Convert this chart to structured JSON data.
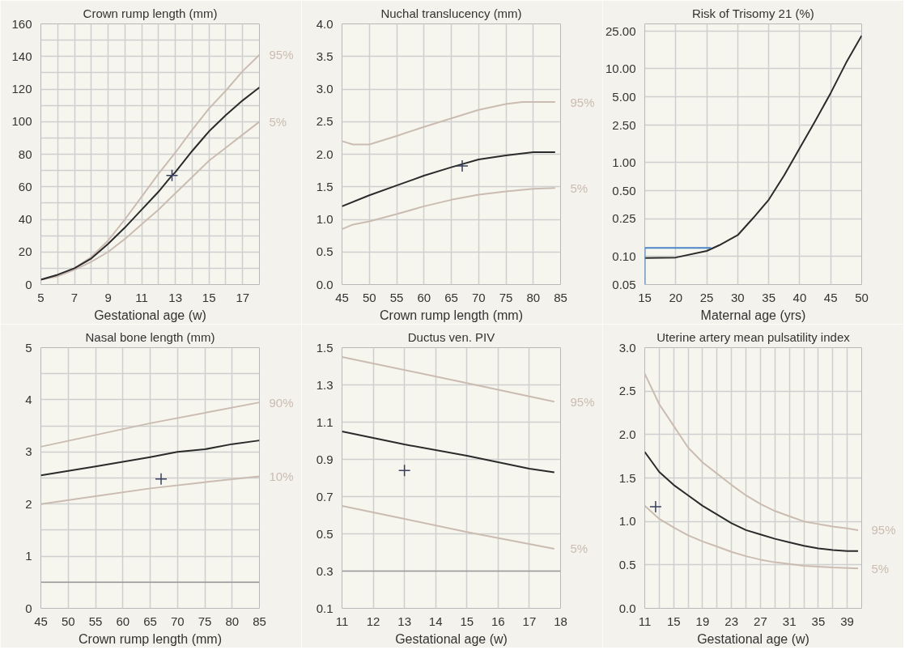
{
  "chart_data": [
    {
      "type": "line",
      "title": "Crown rump length (mm)",
      "xlabel": "Gestational age (w)",
      "xlim": [
        5,
        18
      ],
      "ylim": [
        0,
        160
      ],
      "xticks": [
        5,
        {
          "value": 6,
          "label": null
        },
        7,
        {
          "value": 8,
          "label": null
        },
        9,
        {
          "value": 10,
          "label": null
        },
        11,
        {
          "value": 12,
          "label": null
        },
        13,
        {
          "value": 14,
          "label": null
        },
        15,
        {
          "value": 16,
          "label": null
        },
        17
      ],
      "yticks": [
        0,
        {
          "value": 10,
          "label": null
        },
        20,
        {
          "value": 30,
          "label": null
        },
        40,
        {
          "value": 50,
          "label": null
        },
        60,
        {
          "value": 70,
          "label": null
        },
        80,
        {
          "value": 90,
          "label": null
        },
        100,
        {
          "value": 110,
          "label": null
        },
        120,
        {
          "value": 130,
          "label": null
        },
        140,
        {
          "value": 150,
          "label": null
        },
        160
      ],
      "grid": true,
      "legend": false,
      "series": [
        {
          "name": "95%",
          "color": "#cbbcb2",
          "x": [
            5,
            6,
            7,
            8,
            9,
            10,
            11,
            12,
            13,
            14,
            15,
            16,
            17,
            18
          ],
          "values": [
            3,
            6,
            10,
            17,
            27,
            40,
            54,
            68,
            81,
            95,
            108,
            119,
            131,
            141
          ]
        },
        {
          "name": "5%",
          "color": "#cbbcb2",
          "x": [
            5,
            6,
            7,
            8,
            9,
            10,
            11,
            12,
            13,
            14,
            15,
            16,
            17,
            18
          ],
          "values": [
            3,
            5,
            9,
            14,
            20,
            28,
            37,
            46,
            56,
            66,
            76,
            84,
            92,
            100
          ]
        },
        {
          "color": "#2b2b2b",
          "x": [
            5,
            6,
            7,
            8,
            9,
            10,
            11,
            12,
            12.8,
            13,
            14,
            15,
            16,
            17,
            18
          ],
          "values": [
            3,
            6,
            10,
            16,
            25,
            35,
            46,
            57,
            67,
            69,
            82,
            94,
            104,
            113,
            121
          ]
        },
        {
          "type": "scatter",
          "marker": "cross",
          "color": "#3a3f5c",
          "x": [
            12.8
          ],
          "values": [
            67
          ]
        }
      ]
    },
    {
      "type": "line",
      "title": "Nuchal translucency (mm)",
      "xlabel": "Crown rump length (mm)",
      "xlim": [
        45,
        85
      ],
      "ylim": [
        0,
        4
      ],
      "xticks": [
        45,
        50,
        55,
        60,
        65,
        70,
        75,
        80,
        85
      ],
      "yticks": [
        {
          "value": 0,
          "label": "0.0"
        },
        0.5,
        {
          "value": 1,
          "label": "1.0"
        },
        1.5,
        {
          "value": 2,
          "label": "2.0"
        },
        2.5,
        {
          "value": 3,
          "label": "3.0"
        },
        3.5,
        {
          "value": 4,
          "label": "4.0"
        }
      ],
      "grid": true,
      "legend": false,
      "series": [
        {
          "name": "95%",
          "color": "#cbbcb2",
          "x": [
            45,
            47,
            50,
            55,
            60,
            65,
            70,
            75,
            78,
            84
          ],
          "values": [
            2.2,
            2.15,
            2.15,
            2.28,
            2.42,
            2.55,
            2.68,
            2.77,
            2.8,
            2.8
          ]
        },
        {
          "name": "5%",
          "color": "#cbbcb2",
          "x": [
            45,
            47,
            50,
            55,
            60,
            65,
            70,
            75,
            80,
            84
          ],
          "values": [
            0.85,
            0.92,
            0.97,
            1.08,
            1.2,
            1.3,
            1.38,
            1.43,
            1.47,
            1.48
          ]
        },
        {
          "color": "#2b2b2b",
          "x": [
            45,
            50,
            55,
            60,
            65,
            70,
            75,
            80,
            84
          ],
          "values": [
            1.2,
            1.37,
            1.52,
            1.67,
            1.8,
            1.92,
            1.98,
            2.03,
            2.03
          ]
        },
        {
          "type": "scatter",
          "marker": "cross",
          "color": "#3a3f5c",
          "x": [
            67
          ],
          "values": [
            1.82
          ]
        }
      ]
    },
    {
      "type": "line",
      "title": "Risk of Trisomy 21 (%)",
      "xlabel": "Maternal age (yrs)",
      "xlim": [
        15,
        50
      ],
      "ylim": [
        0.05,
        30
      ],
      "log": "y",
      "xticks": [
        15,
        20,
        25,
        30,
        35,
        40,
        45,
        50
      ],
      "yticks": [
        {
          "value": 0.05,
          "label": "0.05"
        },
        {
          "value": 0.1,
          "label": "0.10"
        },
        {
          "value": 0.25,
          "label": "0.25"
        },
        {
          "value": 0.5,
          "label": "0.50"
        },
        {
          "value": 1,
          "label": "1.00"
        },
        {
          "value": 2.5,
          "label": "2.50"
        },
        {
          "value": 5,
          "label": "5.00"
        },
        {
          "value": 10,
          "label": "10.00"
        },
        {
          "value": 25,
          "label": "25.00"
        }
      ],
      "grid": true,
      "legend": false,
      "series": [
        {
          "color": "#2b2b2b",
          "x": [
            15,
            20,
            25,
            27,
            30,
            32.5,
            35,
            37.5,
            40,
            42.5,
            45,
            47.5,
            50
          ],
          "values": [
            0.096,
            0.097,
            0.114,
            0.131,
            0.168,
            0.256,
            0.4,
            0.73,
            1.42,
            2.76,
            5.5,
            11.6,
            22.5
          ]
        },
        {
          "color": "#4a86c8",
          "x": [
            25.7,
            15,
            15
          ],
          "values": [
            0.123,
            0.123,
            0.05
          ]
        }
      ]
    },
    {
      "type": "line",
      "title": "Nasal bone length (mm)",
      "xlabel": "Crown rump length (mm)",
      "xlim": [
        45,
        85
      ],
      "ylim": [
        0,
        5
      ],
      "xticks": [
        45,
        50,
        55,
        60,
        65,
        70,
        75,
        80,
        85
      ],
      "yticks": [
        0,
        {
          "value": 0.5,
          "label": null
        },
        1,
        {
          "value": 1.5,
          "label": null
        },
        2,
        {
          "value": 2.5,
          "label": null
        },
        3,
        {
          "value": 3.5,
          "label": null
        },
        4,
        {
          "value": 4.5,
          "label": null
        },
        5
      ],
      "grid": true,
      "legend": false,
      "ref_lines": [
        {
          "axis": "y",
          "value": 0.5,
          "color": "#9a9a9a"
        }
      ],
      "series": [
        {
          "name": "90%",
          "color": "#cbbcb2",
          "x": [
            45,
            65,
            85
          ],
          "values": [
            3.1,
            3.55,
            3.95
          ]
        },
        {
          "name": "10%",
          "color": "#cbbcb2",
          "x": [
            45,
            55,
            65,
            75,
            85
          ],
          "values": [
            2.0,
            2.15,
            2.3,
            2.42,
            2.53
          ]
        },
        {
          "color": "#2b2b2b",
          "x": [
            45,
            55,
            65,
            70,
            75,
            80,
            85
          ],
          "values": [
            2.55,
            2.72,
            2.9,
            3.0,
            3.05,
            3.15,
            3.22
          ]
        },
        {
          "type": "scatter",
          "marker": "cross",
          "color": "#3a3f5c",
          "x": [
            67
          ],
          "values": [
            2.48
          ]
        }
      ]
    },
    {
      "type": "line",
      "title": "Ductus ven. PIV",
      "xlabel": "Gestational age (w)",
      "xlim": [
        11,
        18
      ],
      "ylim": [
        0.1,
        1.5
      ],
      "xticks": [
        11,
        12,
        13,
        14,
        15,
        16,
        17,
        18
      ],
      "yticks": [
        0.1,
        0.3,
        0.5,
        0.7,
        0.9,
        1.1,
        1.3,
        1.5
      ],
      "grid": true,
      "legend": false,
      "ref_lines": [
        {
          "axis": "y",
          "value": 0.3,
          "color": "#9a9a9a"
        }
      ],
      "series": [
        {
          "name": "95%",
          "color": "#cbbcb2",
          "x": [
            11,
            15,
            17.8
          ],
          "values": [
            1.45,
            1.31,
            1.21
          ]
        },
        {
          "name": "5%",
          "color": "#cbbcb2",
          "x": [
            11,
            13,
            15,
            17.8
          ],
          "values": [
            0.65,
            0.58,
            0.51,
            0.42
          ]
        },
        {
          "color": "#2b2b2b",
          "x": [
            11,
            13,
            15,
            17,
            17.8
          ],
          "values": [
            1.05,
            0.98,
            0.92,
            0.85,
            0.83
          ]
        },
        {
          "type": "scatter",
          "marker": "cross",
          "color": "#3a3f5c",
          "x": [
            13
          ],
          "values": [
            0.84
          ]
        }
      ]
    },
    {
      "type": "line",
      "title": "Uterine artery mean pulsatility index",
      "xlabel": "Gestational age (w)",
      "xlim": [
        11,
        41
      ],
      "ylim": [
        0,
        3
      ],
      "xticks": [
        11,
        {
          "value": 13,
          "label": null
        },
        15,
        {
          "value": 17,
          "label": null
        },
        19,
        {
          "value": 21,
          "label": null
        },
        23,
        {
          "value": 25,
          "label": null
        },
        27,
        {
          "value": 29,
          "label": null
        },
        31,
        {
          "value": 33,
          "label": null
        },
        35,
        {
          "value": 37,
          "label": null
        },
        39
      ],
      "yticks": [
        {
          "value": 0,
          "label": "0.0"
        },
        0.5,
        {
          "value": 1,
          "label": "1.0"
        },
        1.5,
        {
          "value": 2,
          "label": "2.0"
        },
        2.5,
        {
          "value": 3,
          "label": "3.0"
        }
      ],
      "grid": true,
      "legend": false,
      "series": [
        {
          "name": "95%",
          "color": "#cbbcb2",
          "x": [
            11,
            13,
            15,
            17,
            19,
            21,
            23,
            25,
            27,
            29,
            31,
            33,
            35,
            37,
            39,
            40.5
          ],
          "values": [
            2.7,
            2.35,
            2.1,
            1.85,
            1.68,
            1.55,
            1.42,
            1.3,
            1.2,
            1.12,
            1.06,
            1.0,
            0.97,
            0.94,
            0.92,
            0.9
          ]
        },
        {
          "name": "5%",
          "color": "#cbbcb2",
          "x": [
            11,
            13,
            15,
            17,
            19,
            21,
            23,
            25,
            27,
            29,
            31,
            33,
            35,
            37,
            40.5
          ],
          "values": [
            1.18,
            1.03,
            0.93,
            0.84,
            0.77,
            0.71,
            0.65,
            0.6,
            0.56,
            0.53,
            0.51,
            0.49,
            0.48,
            0.47,
            0.46
          ]
        },
        {
          "color": "#2b2b2b",
          "x": [
            11,
            13,
            15,
            17,
            19,
            21,
            23,
            25,
            27,
            29,
            31,
            33,
            35,
            37,
            39,
            40.5
          ],
          "values": [
            1.8,
            1.57,
            1.42,
            1.3,
            1.18,
            1.08,
            0.98,
            0.9,
            0.85,
            0.8,
            0.76,
            0.72,
            0.69,
            0.67,
            0.66,
            0.66
          ]
        },
        {
          "type": "scatter",
          "marker": "cross",
          "color": "#3a3f5c",
          "x": [
            12.5
          ],
          "values": [
            1.17
          ]
        }
      ]
    }
  ]
}
